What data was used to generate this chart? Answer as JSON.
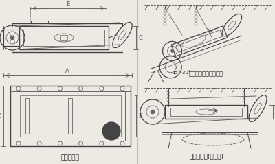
{
  "bg_color": "#ede9e3",
  "line_color": "#666666",
  "dark_line": "#444444",
  "dim_color": "#555555",
  "title_main": "外形尺寸图",
  "title_inclined": "安装示意图（倾斜式）",
  "title_horizontal": "安装示意图(水平式)",
  "angle_label": "15°-30°",
  "fig_width": 4.0,
  "fig_height": 2.39,
  "dpi": 100
}
